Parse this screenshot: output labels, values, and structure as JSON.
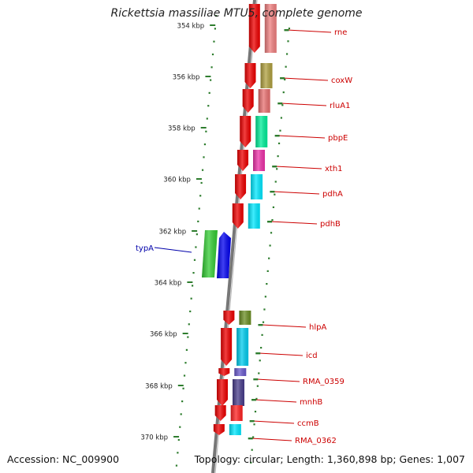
{
  "title": "Rickettsia massiliae MTU5, complete genome",
  "footer": {
    "accession": "Accession: NC_009900",
    "stats": "Topology: circular; Length: 1,360,898 bp; Genes: 1,007"
  },
  "map": {
    "colors": {
      "backbone": "#777777",
      "tick": "#2e7d2e",
      "gene_label": "#cc0000",
      "feature_label": "#0000aa"
    },
    "ticks": [
      {
        "label": "354 kbp"
      },
      {
        "label": "356 kbp"
      },
      {
        "label": "358 kbp"
      },
      {
        "label": "360 kbp"
      },
      {
        "label": "362 kbp"
      },
      {
        "label": "364 kbp"
      },
      {
        "label": "366 kbp"
      },
      {
        "label": "368 kbp"
      },
      {
        "label": "370 kbp"
      }
    ],
    "genes": [
      {
        "name": "rne",
        "color": "#f08080"
      },
      {
        "name": "coxW",
        "color": "#b0a040"
      },
      {
        "name": "rluA1",
        "color": "#e87070"
      },
      {
        "name": "pbpE",
        "color": "#00ee99"
      },
      {
        "name": "xth1",
        "color": "#ee33aa"
      },
      {
        "name": "pdhA",
        "color": "#00e8ff"
      },
      {
        "name": "pdhB",
        "color": "#00e8ff"
      },
      {
        "name": "hlpA",
        "color": "#6b8e23"
      },
      {
        "name": "icd",
        "color": "#00ccee"
      },
      {
        "name": "RMA_0359",
        "color": "#6a5acd"
      },
      {
        "name": "mnhB",
        "color": "#483d8b"
      },
      {
        "name": "ccmB",
        "color": "#ff2222"
      },
      {
        "name": "RMA_0362",
        "color": "#00e8ff"
      }
    ],
    "features": [
      {
        "name": "typA",
        "color_outer": "#33cc33",
        "color_inner": "#0000ee"
      }
    ]
  }
}
